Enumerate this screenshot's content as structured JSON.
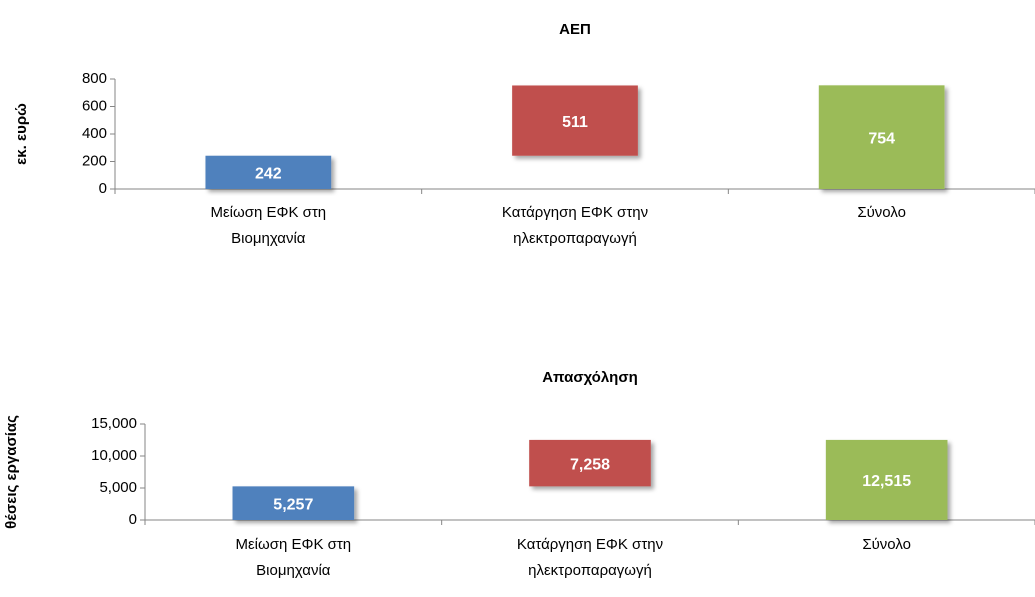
{
  "chart_data": [
    {
      "type": "waterfall",
      "title": "ΑΕΠ",
      "y_label": "εκ. ευρώ",
      "categories": [
        "Μείωση ΕΦΚ στη Βιομηχανία",
        "Κατάργηση ΕΦΚ στην ηλεκτροπαραγωγή",
        "Σύνολο"
      ],
      "values": [
        242,
        511,
        754
      ],
      "totals": [
        false,
        false,
        true
      ],
      "colors": [
        "#4f81bd",
        "#c0504d",
        "#9bbb59"
      ],
      "ylim": [
        0,
        800
      ],
      "yticks": [
        0,
        200,
        400,
        600,
        800
      ]
    },
    {
      "type": "waterfall",
      "title": "Απασχόληση",
      "y_label": "θέσεις εργασίας",
      "categories": [
        "Μείωση ΕΦΚ στη Βιομηχανία",
        "Κατάργηση ΕΦΚ στην ηλεκτροπαραγωγή",
        "Σύνολο"
      ],
      "values": [
        5257,
        7258,
        12515
      ],
      "value_labels": [
        "5,257",
        "7,258",
        "12,515"
      ],
      "totals": [
        false,
        false,
        true
      ],
      "colors": [
        "#4f81bd",
        "#c0504d",
        "#9bbb59"
      ],
      "ylim": [
        0,
        15000
      ],
      "yticks": [
        0,
        {
          "value": 5000,
          "label": "5,000"
        },
        {
          "value": 10000,
          "label": "10,000"
        },
        {
          "value": 15000,
          "label": "15,000"
        }
      ]
    }
  ]
}
